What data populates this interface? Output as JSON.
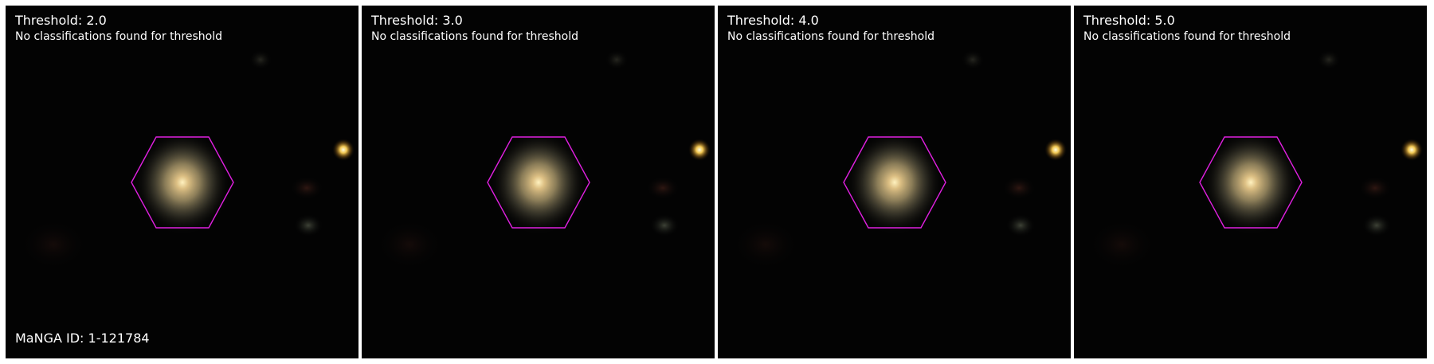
{
  "panels": [
    {
      "threshold_text": "Threshold: 2.0",
      "message": "No classifications found for threshold"
    },
    {
      "threshold_text": "Threshold: 3.0",
      "message": "No classifications found for threshold"
    },
    {
      "threshold_text": "Threshold: 4.0",
      "message": "No classifications found for threshold"
    },
    {
      "threshold_text": "Threshold: 5.0",
      "message": "No classifications found for threshold"
    }
  ],
  "galaxy": {
    "manga_id_text": "MaNGA ID: 1-121784"
  },
  "colors": {
    "background": "#030303",
    "galaxy_core": "#e8c98a",
    "galaxy_halo": "#6f6a52",
    "ifu_hexagon": "#e020e0",
    "star": "#ffd257",
    "separator": "#ffffff"
  }
}
